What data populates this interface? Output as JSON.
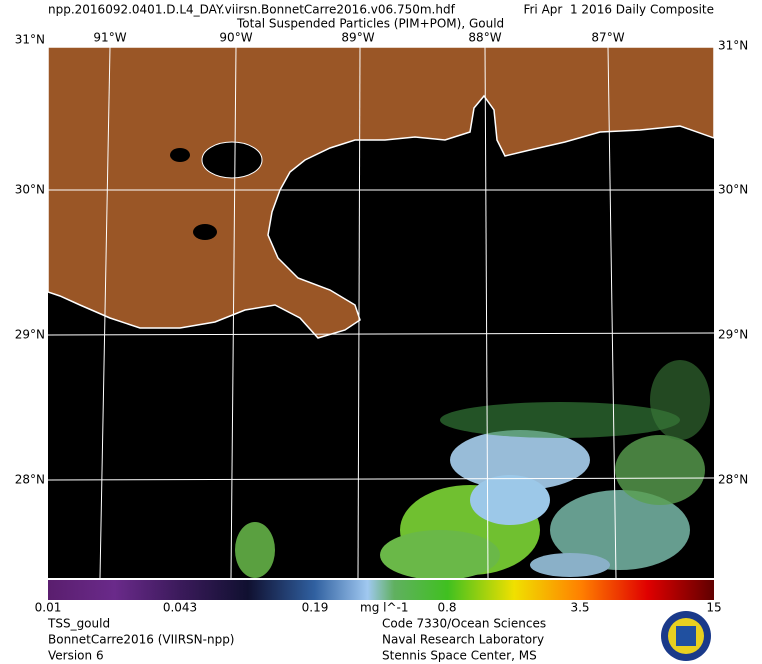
{
  "header": {
    "filename": "npp.2016092.0401.D.L4_DAY.viirsn.BonnetCarre2016.v06.750m.hdf",
    "date": "Fri Apr  1 2016 Daily Composite",
    "title": "Total Suspended Particles (PIM+POM), Gould"
  },
  "map": {
    "top_labels": [
      "91°W",
      "90°W",
      "89°W",
      "88°W",
      "87°W"
    ],
    "left_labels": [
      "31°N",
      "30°N",
      "29°N",
      "28°N"
    ],
    "right_labels": [
      "31°N",
      "30°N",
      "29°N",
      "28°N"
    ]
  },
  "colorbar": {
    "ticks": [
      "0.01",
      "0.043",
      "0.19",
      "0.8",
      "3.5",
      "15"
    ],
    "unit": "mg l^-1"
  },
  "footer": {
    "left": [
      "TSS_gould",
      "BonnetCarre2016 (VIIRSN-npp)",
      "Version 6"
    ],
    "right": [
      "Code 7330/Ocean Sciences",
      "Naval Research Laboratory",
      "Stennis Space Center, MS"
    ]
  }
}
